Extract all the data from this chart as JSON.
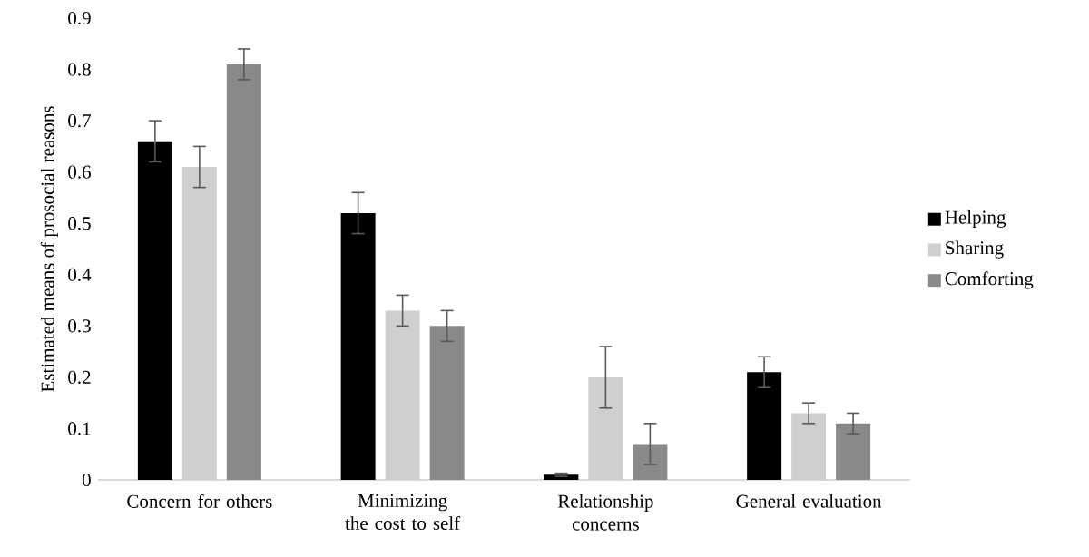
{
  "chart_data": {
    "type": "bar",
    "ylabel": "Estimated means of prosocial reasons",
    "categories": [
      "Concern for others",
      "Minimizing the cost to self",
      "Relationship concerns",
      "General evaluation"
    ],
    "series": [
      {
        "name": "Helping",
        "color": "#000000",
        "values": [
          0.66,
          0.52,
          0.01,
          0.21
        ],
        "errors": [
          0.04,
          0.04,
          0.003,
          0.03
        ]
      },
      {
        "name": "Sharing",
        "color": "#d0cfd0",
        "values": [
          0.61,
          0.33,
          0.2,
          0.13
        ],
        "errors": [
          0.04,
          0.03,
          0.06,
          0.02
        ]
      },
      {
        "name": "Comforting",
        "color": "#898989",
        "values": [
          0.81,
          0.3,
          0.07,
          0.11
        ],
        "errors": [
          0.03,
          0.03,
          0.04,
          0.02
        ]
      }
    ],
    "ylim": [
      0,
      0.9
    ],
    "yticks": [
      0,
      0.1,
      0.2,
      0.3,
      0.4,
      0.5,
      0.6,
      0.7,
      0.8,
      0.9
    ],
    "legend": "right"
  }
}
